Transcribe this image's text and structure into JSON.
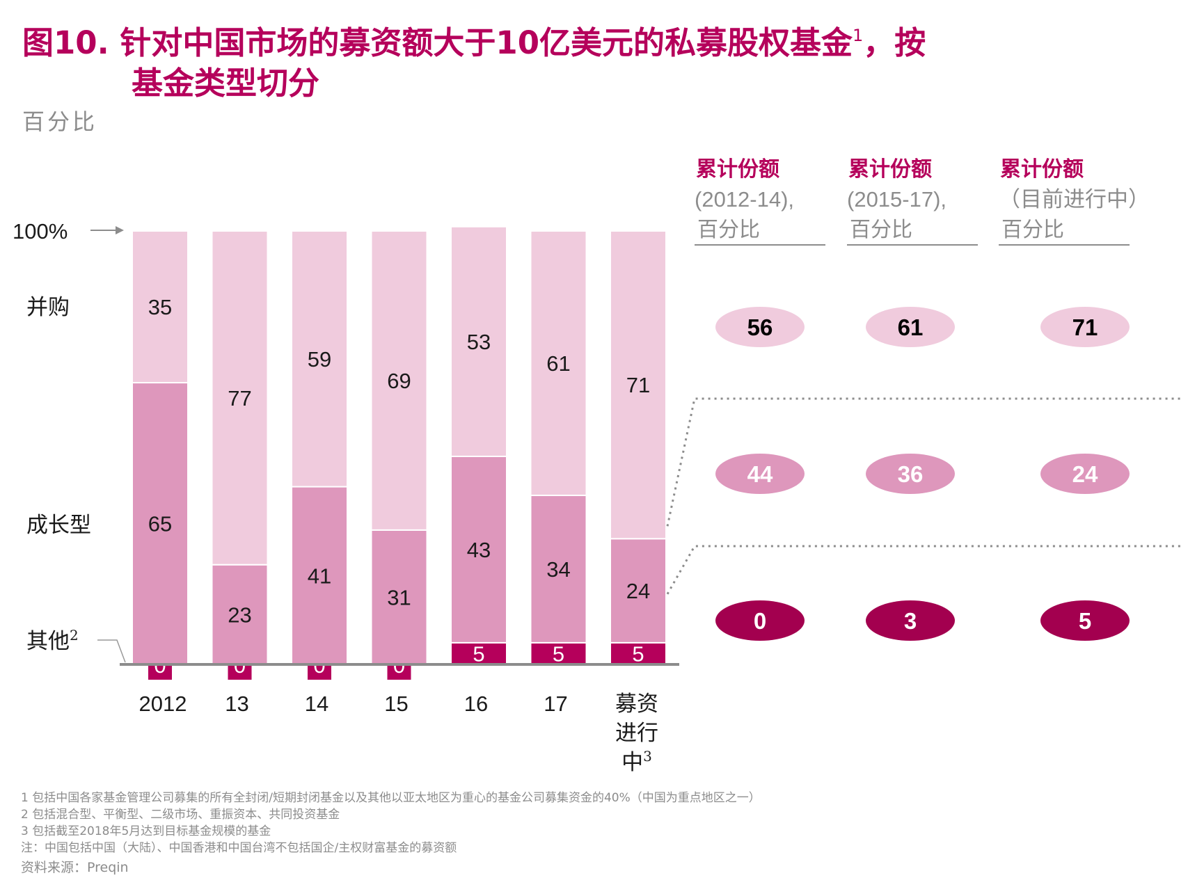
{
  "title": {
    "line1": "图10. 针对中国市场的募资额大于10亿美元的私募股权基金",
    "sup": "1",
    "line1_tail": "，按",
    "line2": "基金类型切分"
  },
  "unit_label": "百分比",
  "hundred_label": "100%",
  "row_labels": {
    "buyout": "并购",
    "growth": "成长型",
    "other": "其他",
    "other_sup": "2"
  },
  "footnotes": [
    "1 包括中国各家基金管理公司募集的所有全封闭/短期封闭基金以及其他以亚太地区为重心的基金公司募集资金的40%（中国为重点地区之一）",
    "2 包括混合型、平衡型、二级市场、重振资本、共同投资基金",
    "3 包括截至2018年5月达到目标基金规模的基金",
    "注：中国包括中国（大陆）、中国香港和中国台湾不包括国企/主权财富基金的募资额"
  ],
  "source": "资料来源：Preqin",
  "colors": {
    "title": "#b5005b",
    "buyout": "#f0cbdd",
    "growth": "#de97bc",
    "other": "#b5005b",
    "axis": "#8c8c8c",
    "ellipse_buyout": "#f0cbdd",
    "ellipse_growth": "#de97bc",
    "ellipse_other": "#a3004f"
  },
  "chart_data": [
    {
      "type": "bar",
      "stacked": true,
      "categories": [
        "2012",
        "13",
        "14",
        "15",
        "16",
        "17",
        "募资进行中"
      ],
      "category_sup": [
        "",
        "",
        "",
        "",
        "",
        "",
        "3"
      ],
      "series": [
        {
          "name": "其他",
          "values": [
            0,
            0,
            0,
            0,
            5,
            5,
            5
          ]
        },
        {
          "name": "成长型",
          "values": [
            65,
            23,
            41,
            31,
            43,
            34,
            24
          ]
        },
        {
          "name": "并购",
          "values": [
            35,
            77,
            59,
            69,
            53,
            61,
            71
          ]
        }
      ],
      "ylim": [
        0,
        100
      ]
    },
    {
      "type": "table",
      "columns": [
        {
          "header": "累计份额",
          "sub": "(2012-14),",
          "unit": "百分比"
        },
        {
          "header": "累计份额",
          "sub": "(2015-17),",
          "unit": "百分比"
        },
        {
          "header": "累计份额",
          "sub": "（目前进行中）",
          "unit": "百分比"
        }
      ],
      "rows": [
        {
          "name": "并购",
          "values": [
            56,
            61,
            71
          ]
        },
        {
          "name": "成长型",
          "values": [
            44,
            36,
            24
          ]
        },
        {
          "name": "其他",
          "values": [
            0,
            3,
            5
          ]
        }
      ]
    }
  ]
}
